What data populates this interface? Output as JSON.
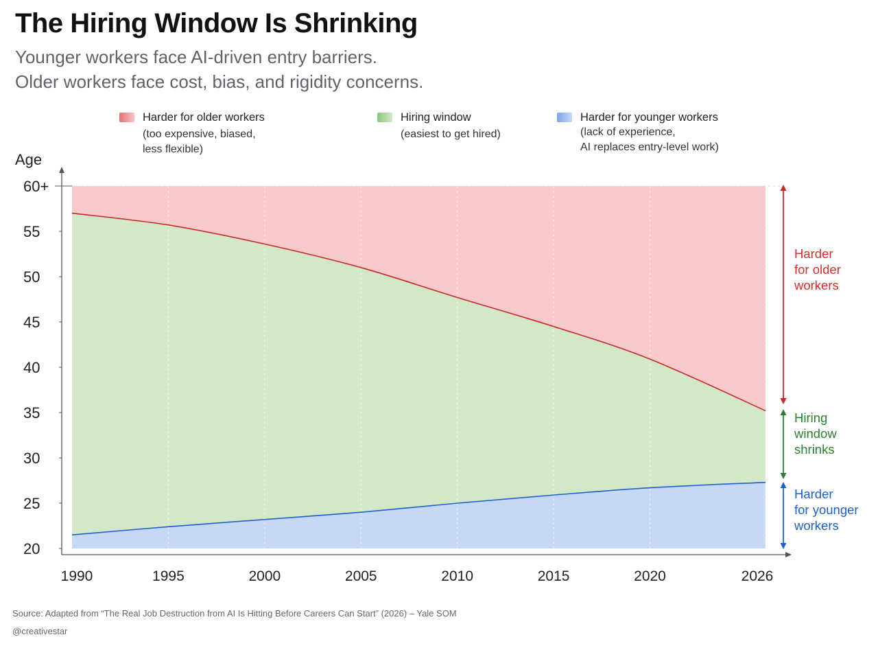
{
  "title": "The Hiring Window Is Shrinking",
  "subtitle_line1": "Younger workers face AI-driven entry barriers.",
  "subtitle_line2": "Older workers face cost, bias, and rigidity concerns.",
  "legend": [
    {
      "name": "Harder for older workers",
      "detail_line1": "(too expensive, biased,",
      "detail_line2": "less flexible)",
      "color": "#e57373"
    },
    {
      "name": "Hiring window",
      "detail_line1": "(easiest to get hired)",
      "detail_line2": "",
      "color": "#9ccc85"
    },
    {
      "name": "Harder for younger workers",
      "detail_line1": "(lack of experience,",
      "detail_line2": "AI replaces entry-level work)",
      "color": "#8fb4ee"
    }
  ],
  "right_labels": {
    "older": "Harder\nfor older\nworkers",
    "window": "Hiring\nwindow\nshrinks",
    "younger": "Harder\nfor younger\nworkers"
  },
  "source": "Source: Adapted from “The Real Job Destruction from AI Is Hitting Before Careers Can Start” (2026) – Yale SOM",
  "credit": "@creativestar",
  "colors": {
    "older_fill": "#f9c9cb",
    "older_line": "#c62828",
    "older_text": "#d32f2f",
    "window_fill": "#d3e7c9",
    "window_text": "#2e7d32",
    "window_arrow": "#2e7d32",
    "younger_fill": "#c6d8f5",
    "younger_line": "#1e5fd0",
    "younger_text": "#1e5fc9"
  },
  "chart_data": {
    "type": "area",
    "x": [
      1990,
      1995,
      2000,
      2005,
      2010,
      2015,
      2020,
      2026
    ],
    "x_tick_labels": [
      "1990",
      "1995",
      "2000",
      "2005",
      "2010",
      "2015",
      "2020",
      "2026"
    ],
    "ylabel": "Age",
    "y_tick_labels": [
      "20",
      "25",
      "30",
      "35",
      "40",
      "45",
      "50",
      "55",
      "60+"
    ],
    "ylim": [
      20,
      60
    ],
    "grid": "vertical dashed",
    "series": [
      {
        "name": "Harder for younger workers",
        "values": [
          21.5,
          22.4,
          23.2,
          24.0,
          25.0,
          25.9,
          26.7,
          27.3
        ]
      },
      {
        "name": "Hiring window",
        "values": [
          57.0,
          55.7,
          53.6,
          51.0,
          47.7,
          44.5,
          40.9,
          35.2
        ]
      },
      {
        "name": "Harder for older workers",
        "values": [
          60,
          60,
          60,
          60,
          60,
          60,
          60,
          60
        ]
      }
    ]
  }
}
